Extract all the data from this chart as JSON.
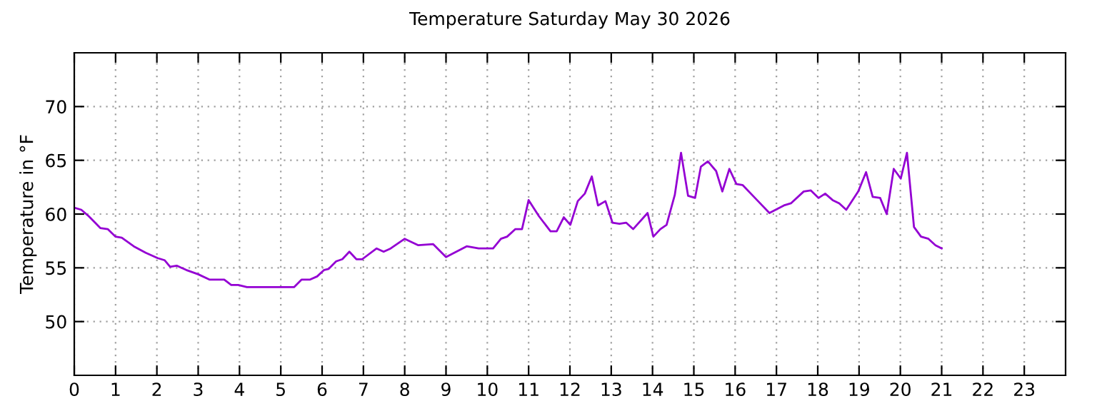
{
  "chart_data": {
    "type": "line",
    "title": "Temperature Saturday May 30 2026",
    "ylabel": "Temperature in °F",
    "xlim": [
      0,
      24
    ],
    "xticks": [
      0,
      1,
      2,
      3,
      4,
      5,
      6,
      7,
      8,
      9,
      10,
      11,
      12,
      13,
      14,
      15,
      16,
      17,
      18,
      19,
      20,
      21,
      22,
      23
    ],
    "ylim": [
      45,
      75
    ],
    "yticks": [
      50,
      55,
      60,
      65,
      70
    ],
    "grid": true,
    "line_style": "solid",
    "marker": "none",
    "series": [
      {
        "color": "#9400d3",
        "x": [
          0,
          0.17,
          0.35,
          0.63,
          0.81,
          1.0,
          1.15,
          1.44,
          1.73,
          2.02,
          2.19,
          2.32,
          2.48,
          2.71,
          3.0,
          3.28,
          3.63,
          3.8,
          3.97,
          4.18,
          4.67,
          5.32,
          5.5,
          5.7,
          5.88,
          6.05,
          6.16,
          6.34,
          6.49,
          6.66,
          6.83,
          6.97,
          7.32,
          7.49,
          7.66,
          8.0,
          8.33,
          8.69,
          9.0,
          9.5,
          9.79,
          10.14,
          10.33,
          10.48,
          10.68,
          10.84,
          11.0,
          11.25,
          11.53,
          11.68,
          11.85,
          12.01,
          12.19,
          12.36,
          12.53,
          12.68,
          12.86,
          13.03,
          13.2,
          13.36,
          13.53,
          13.88,
          14.02,
          14.19,
          14.34,
          14.54,
          14.69,
          14.86,
          15.03,
          15.17,
          15.34,
          15.54,
          15.69,
          15.86,
          16.03,
          16.18,
          16.53,
          16.83,
          17.18,
          17.35,
          17.66,
          17.83,
          18.02,
          18.18,
          18.36,
          18.52,
          18.69,
          18.98,
          19.17,
          19.33,
          19.51,
          19.67,
          19.84,
          20.01,
          20.16,
          20.33,
          20.5,
          20.68,
          20.85,
          21.0
        ],
        "values": [
          60.6,
          60.4,
          59.8,
          58.7,
          58.6,
          57.9,
          57.8,
          57.0,
          56.4,
          55.9,
          55.7,
          55.1,
          55.2,
          54.8,
          54.4,
          53.9,
          53.9,
          53.4,
          53.4,
          53.2,
          53.2,
          53.2,
          53.9,
          53.9,
          54.2,
          54.8,
          54.9,
          55.6,
          55.8,
          56.5,
          55.8,
          55.8,
          56.8,
          56.5,
          56.8,
          57.7,
          57.1,
          57.2,
          56.0,
          57.0,
          56.8,
          56.8,
          57.7,
          57.9,
          58.6,
          58.6,
          61.3,
          59.8,
          58.4,
          58.4,
          59.7,
          59.0,
          61.2,
          61.9,
          63.5,
          60.8,
          61.2,
          59.2,
          59.1,
          59.2,
          58.6,
          60.1,
          57.9,
          58.6,
          59.0,
          61.8,
          65.7,
          61.7,
          61.5,
          64.4,
          64.9,
          64.0,
          62.1,
          64.2,
          62.8,
          62.7,
          61.3,
          60.1,
          60.8,
          61.0,
          62.1,
          62.2,
          61.5,
          61.9,
          61.3,
          61.0,
          60.4,
          62.1,
          63.9,
          61.6,
          61.5,
          60.0,
          64.2,
          63.3,
          65.7,
          58.8,
          57.9,
          57.7,
          57.1,
          56.8
        ]
      }
    ]
  }
}
